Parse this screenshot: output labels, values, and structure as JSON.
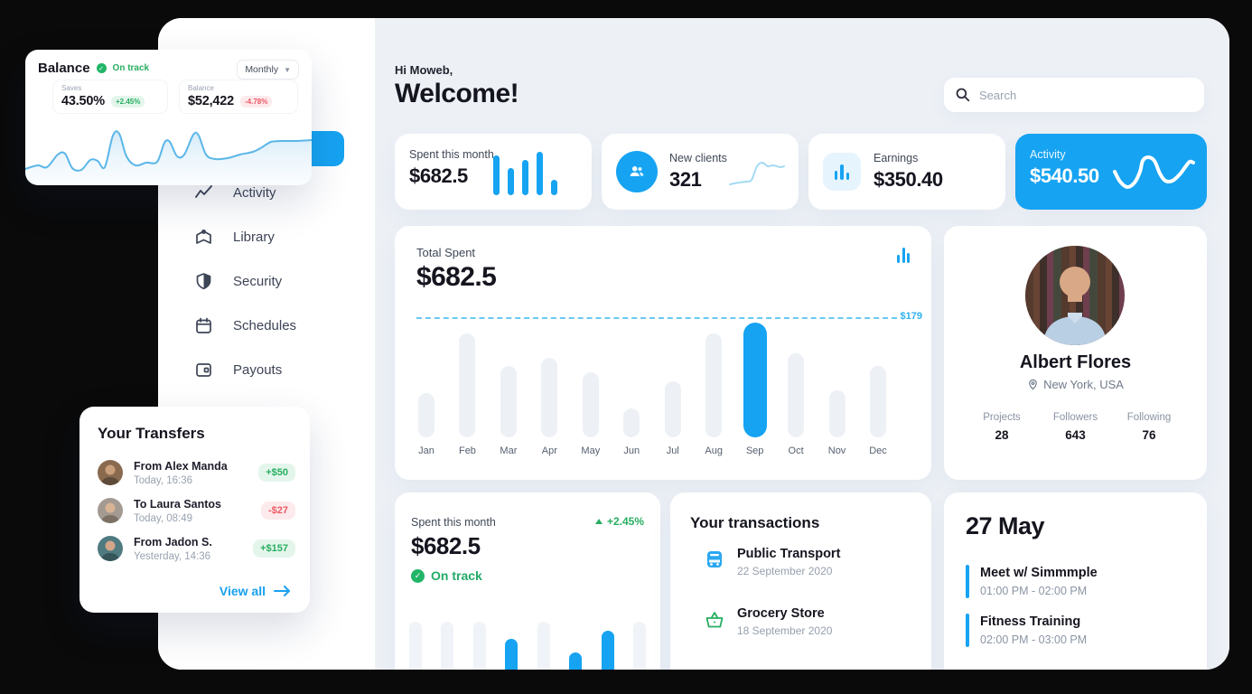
{
  "colors": {
    "accent": "#16a3f2",
    "green": "#27ae60",
    "red": "#eb5b66",
    "bg": "#edf1f6"
  },
  "sidebar": {
    "items": [
      {
        "icon": "activity-icon",
        "label": "Activity"
      },
      {
        "icon": "library-icon",
        "label": "Library"
      },
      {
        "icon": "security-icon",
        "label": "Security"
      },
      {
        "icon": "schedules-icon",
        "label": "Schedules"
      },
      {
        "icon": "payouts-icon",
        "label": "Payouts"
      }
    ]
  },
  "header": {
    "greeting": "Hi Moweb,",
    "title": "Welcome!",
    "search_placeholder": "Search"
  },
  "stats": [
    {
      "label": "Spent this month",
      "value": "$682.5"
    },
    {
      "label": "New clients",
      "value": "321"
    },
    {
      "label": "Earnings",
      "value": "$350.40"
    },
    {
      "label": "Activity",
      "value": "$540.50"
    }
  ],
  "balance_card": {
    "title": "Balance",
    "status": "On track",
    "period": "Monthly",
    "stats": [
      {
        "label": "Saves",
        "value": "43.50%",
        "delta": "+2.45%"
      },
      {
        "label": "Balance",
        "value": "$52,422",
        "delta": "-4.78%"
      }
    ]
  },
  "transfers": {
    "title": "Your Transfers",
    "items": [
      {
        "name": "From Alex Manda",
        "time": "Today, 16:36",
        "amount": "+$50"
      },
      {
        "name": "To Laura Santos",
        "time": "Today, 08:49",
        "amount": "-$27"
      },
      {
        "name": "From Jadon S.",
        "time": "Yesterday, 14:36",
        "amount": "+$157"
      }
    ],
    "view_all": "View all"
  },
  "total_spent": {
    "label": "Total Spent",
    "value": "$682.5"
  },
  "spent_month": {
    "label": "Spent this month",
    "value": "$682.5",
    "delta": "+2.45%",
    "status": "On track"
  },
  "transactions": {
    "title": "Your transactions",
    "items": [
      {
        "icon": "bus-icon",
        "name": "Public Transport",
        "date": "22 September 2020"
      },
      {
        "icon": "basket-icon",
        "name": "Grocery Store",
        "date": "18 September 2020"
      }
    ]
  },
  "profile": {
    "name": "Albert Flores",
    "location": "New York, USA",
    "stats": [
      {
        "label": "Projects",
        "value": "28"
      },
      {
        "label": "Followers",
        "value": "643"
      },
      {
        "label": "Following",
        "value": "76"
      }
    ]
  },
  "schedule": {
    "date": "27 May",
    "events": [
      {
        "title": "Meet w/ Simmmple",
        "time": "01:00 PM - 02:00 PM"
      },
      {
        "title": "Fitness Training",
        "time": "02:00 PM - 03:00 PM"
      }
    ]
  },
  "chart_data": [
    {
      "type": "bar",
      "name": "total-spent-monthly",
      "title": "Total Spent",
      "categories": [
        "Jan",
        "Feb",
        "Mar",
        "Apr",
        "May",
        "Jun",
        "Jul",
        "Aug",
        "Sep",
        "Oct",
        "Nov",
        "Dec"
      ],
      "values": [
        66,
        156,
        107,
        120,
        98,
        43,
        84,
        156,
        172,
        126,
        71,
        107
      ],
      "highlight": "Sep",
      "threshold": 179,
      "threshold_label": "$179",
      "ylim": [
        0,
        190
      ],
      "grid": false,
      "unit": "$"
    },
    {
      "type": "bar",
      "name": "spent-month-mini",
      "heights": [
        73,
        73,
        73,
        54,
        73,
        39,
        63,
        73
      ],
      "colors": [
        "g",
        "g",
        "g",
        "b",
        "g",
        "b",
        "b",
        "g"
      ]
    },
    {
      "type": "bar",
      "name": "spent-card-sparkbars",
      "heights": [
        44,
        30,
        39,
        48,
        17
      ]
    },
    {
      "type": "line",
      "name": "balance-trend",
      "points": [
        [
          0,
          54
        ],
        [
          14,
          50
        ],
        [
          24,
          52
        ],
        [
          36,
          38
        ],
        [
          44,
          37
        ],
        [
          52,
          53
        ],
        [
          62,
          55
        ],
        [
          72,
          44
        ],
        [
          80,
          45
        ],
        [
          88,
          52
        ],
        [
          97,
          17
        ],
        [
          104,
          15
        ],
        [
          112,
          40
        ],
        [
          122,
          50
        ],
        [
          134,
          47
        ],
        [
          146,
          46
        ],
        [
          154,
          25
        ],
        [
          160,
          24
        ],
        [
          168,
          40
        ],
        [
          176,
          38
        ],
        [
          186,
          16
        ],
        [
          192,
          17
        ],
        [
          200,
          38
        ],
        [
          210,
          43
        ],
        [
          224,
          42
        ],
        [
          238,
          38
        ],
        [
          252,
          35
        ],
        [
          262,
          30
        ],
        [
          272,
          24
        ],
        [
          284,
          23
        ],
        [
          300,
          23
        ],
        [
          317,
          22
        ]
      ],
      "view": [
        317,
        72
      ]
    },
    {
      "type": "line",
      "name": "new-clients-sparkline",
      "points": [
        [
          2,
          32
        ],
        [
          12,
          30
        ],
        [
          20,
          29
        ],
        [
          26,
          27
        ],
        [
          32,
          12
        ],
        [
          38,
          8
        ],
        [
          44,
          12
        ],
        [
          50,
          11
        ],
        [
          58,
          13
        ],
        [
          62,
          12
        ]
      ],
      "view": [
        64,
        38
      ]
    },
    {
      "type": "line",
      "name": "activity-sparkline",
      "points": [
        [
          4,
          28
        ],
        [
          10,
          39
        ],
        [
          18,
          45
        ],
        [
          26,
          40
        ],
        [
          32,
          28
        ],
        [
          35,
          16
        ],
        [
          41,
          12
        ],
        [
          48,
          16
        ],
        [
          54,
          30
        ],
        [
          60,
          38
        ],
        [
          68,
          38
        ],
        [
          76,
          31
        ],
        [
          82,
          23
        ],
        [
          87,
          17
        ],
        [
          91,
          18
        ]
      ],
      "view": [
        94,
        54
      ]
    }
  ]
}
